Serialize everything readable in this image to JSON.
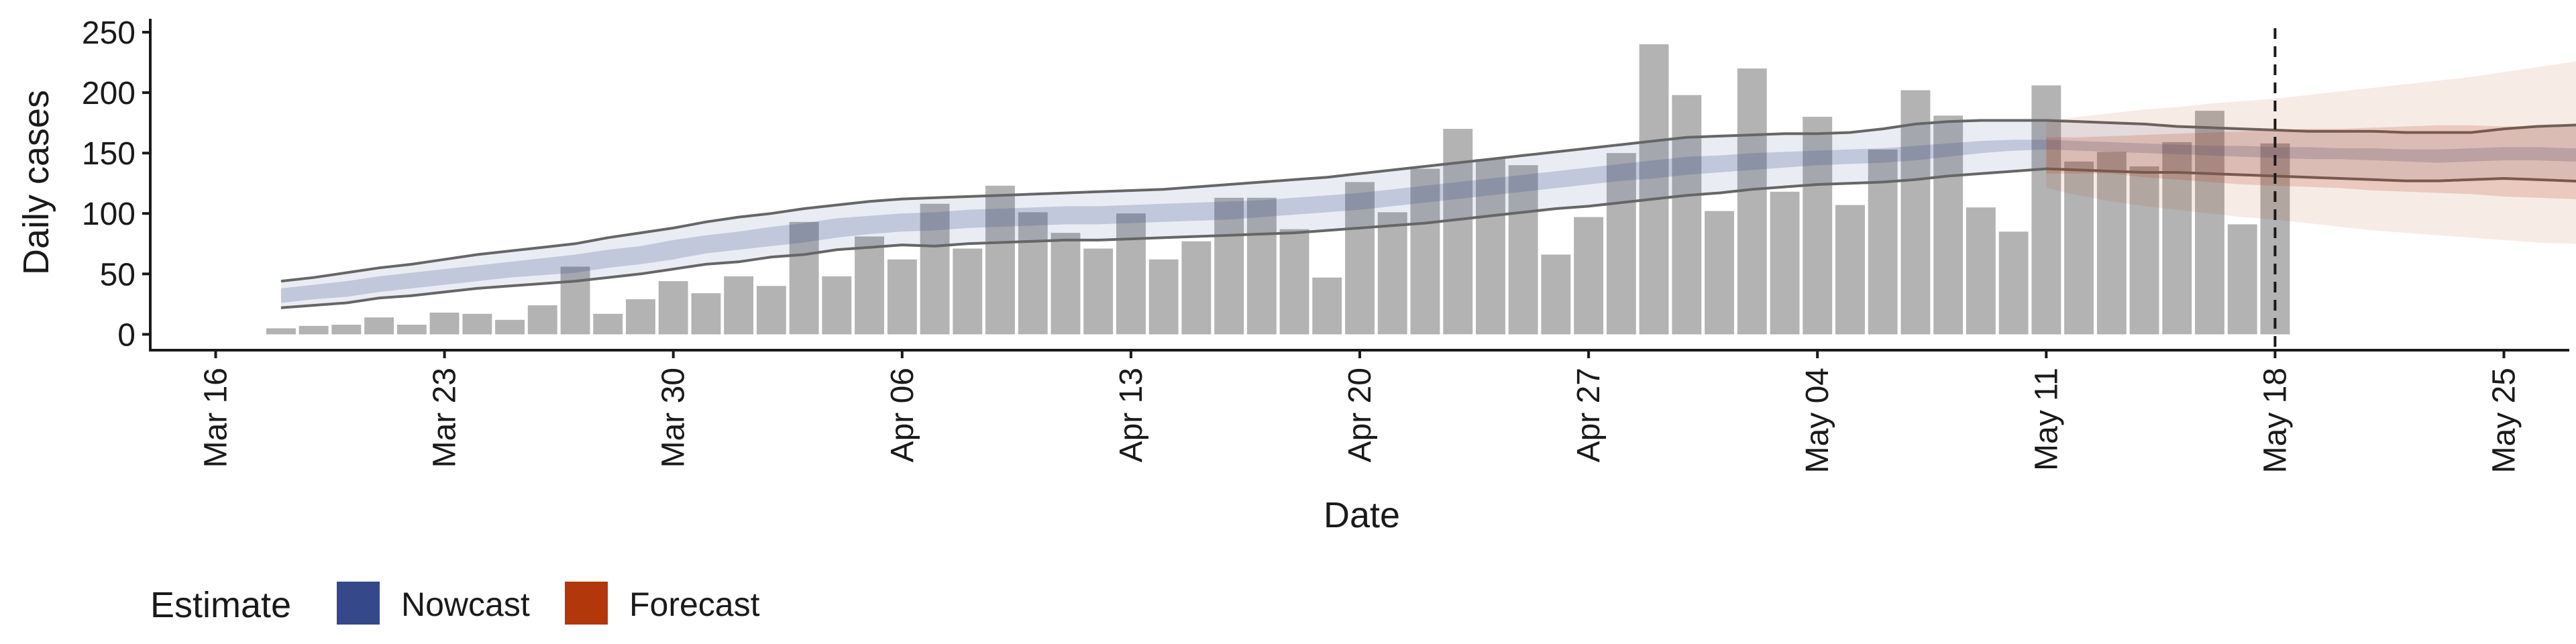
{
  "chart_data": {
    "type": "bar",
    "xlabel": "Date",
    "ylabel": "Daily cases",
    "x_ticks": [
      "Mar 16",
      "Mar 23",
      "Mar 30",
      "Apr 06",
      "Apr 13",
      "Apr 20",
      "Apr 27",
      "May 04",
      "May 11",
      "May 18",
      "May 25"
    ],
    "x_range": [
      "2020-03-14",
      "2020-05-27"
    ],
    "y_ticks": [
      0,
      50,
      100,
      150,
      200,
      250
    ],
    "ylim": [
      -12,
      260
    ],
    "legend": {
      "title": "Estimate",
      "placement": "bottom-left",
      "items": [
        {
          "label": "Nowcast",
          "color": "#34488a"
        },
        {
          "label": "Forecast",
          "color": "#b2380b"
        }
      ]
    },
    "vline_date": "2020-05-18",
    "bars": {
      "start_date": "2020-03-18",
      "color": "#b3b3b3",
      "values": [
        5,
        7,
        8,
        14,
        8,
        18,
        17,
        12,
        24,
        56,
        17,
        29,
        44,
        34,
        48,
        40,
        93,
        48,
        81,
        62,
        108,
        71,
        123,
        101,
        84,
        71,
        100,
        62,
        77,
        113,
        113,
        87,
        47,
        126,
        101,
        137,
        170,
        145,
        140,
        66,
        97,
        150,
        240,
        198,
        102,
        220,
        118,
        180,
        107,
        153,
        202,
        181,
        105,
        85,
        206,
        143,
        151,
        139,
        159,
        185,
        91,
        158
      ]
    },
    "nowcast": {
      "start_date": "2020-03-18",
      "outer_lower": [
        22,
        24,
        26,
        30,
        32,
        35,
        38,
        40,
        42,
        44,
        47,
        50,
        54,
        58,
        60,
        64,
        66,
        70,
        72,
        74,
        73,
        75,
        76,
        77,
        78,
        78,
        79,
        80,
        81,
        82,
        83,
        84,
        86,
        88,
        90,
        92,
        95,
        98,
        101,
        104,
        106,
        109,
        112,
        115,
        117,
        120,
        122,
        124,
        125,
        126,
        128,
        131,
        133,
        135,
        137,
        136,
        135,
        134,
        134,
        133,
        132,
        131,
        130,
        129,
        128,
        127,
        127,
        128,
        129,
        128,
        127,
        126,
        125,
        124
      ],
      "inner_lower": [
        26,
        29,
        31,
        35,
        38,
        41,
        44,
        47,
        49,
        51,
        55,
        58,
        62,
        67,
        70,
        73,
        76,
        80,
        83,
        85,
        86,
        88,
        89,
        90,
        91,
        91,
        92,
        93,
        94,
        95,
        97,
        99,
        101,
        103,
        106,
        109,
        112,
        115,
        118,
        121,
        124,
        127,
        129,
        132,
        134,
        136,
        138,
        140,
        141,
        142,
        144,
        147,
        150,
        152,
        153,
        152,
        151,
        150,
        149,
        148,
        147,
        146,
        145,
        145,
        144,
        143,
        142,
        143,
        144,
        144,
        143,
        143,
        142,
        142
      ],
      "inner_upper": [
        38,
        41,
        44,
        48,
        51,
        54,
        57,
        60,
        63,
        66,
        70,
        73,
        78,
        82,
        85,
        89,
        92,
        96,
        98,
        100,
        101,
        103,
        104,
        105,
        106,
        106,
        107,
        108,
        109,
        110,
        111,
        113,
        115,
        117,
        120,
        123,
        126,
        129,
        132,
        135,
        138,
        141,
        144,
        147,
        148,
        150,
        151,
        152,
        153,
        154,
        156,
        158,
        160,
        161,
        161,
        160,
        159,
        158,
        157,
        156,
        156,
        155,
        155,
        154,
        154,
        153,
        153,
        154,
        155,
        155,
        154,
        154,
        154,
        155
      ],
      "outer_upper": [
        44,
        47,
        51,
        55,
        58,
        62,
        66,
        69,
        72,
        75,
        80,
        84,
        88,
        93,
        97,
        100,
        104,
        107,
        110,
        112,
        113,
        114,
        115,
        116,
        117,
        118,
        119,
        120,
        122,
        124,
        126,
        128,
        130,
        133,
        136,
        139,
        142,
        145,
        148,
        151,
        154,
        157,
        160,
        163,
        164,
        165,
        166,
        166,
        167,
        170,
        174,
        176,
        177,
        177,
        177,
        176,
        175,
        174,
        172,
        171,
        170,
        169,
        168,
        168,
        168,
        167,
        167,
        167,
        170,
        172,
        173,
        174,
        176,
        178
      ]
    },
    "forecast": {
      "start_date": "2020-05-11",
      "outer_lower": [
        121,
        115,
        110,
        106,
        103,
        100,
        97,
        95,
        92,
        89,
        86,
        84,
        82,
        80,
        78,
        76,
        75,
        74,
        73,
        72,
        71
      ],
      "inner_lower": [
        133,
        133,
        133,
        130,
        128,
        126,
        124,
        123,
        122,
        121,
        119,
        118,
        117,
        116,
        114,
        113,
        112,
        111,
        109,
        107,
        105
      ],
      "inner_upper": [
        163,
        163,
        164,
        165,
        166,
        167,
        168,
        169,
        170,
        170,
        171,
        172,
        173,
        173,
        172,
        172,
        172,
        172,
        172,
        172,
        171
      ],
      "outer_upper": [
        176,
        180,
        183,
        186,
        188,
        191,
        193,
        195,
        198,
        201,
        204,
        207,
        210,
        213,
        217,
        221,
        225,
        229,
        233,
        238,
        247
      ]
    }
  }
}
